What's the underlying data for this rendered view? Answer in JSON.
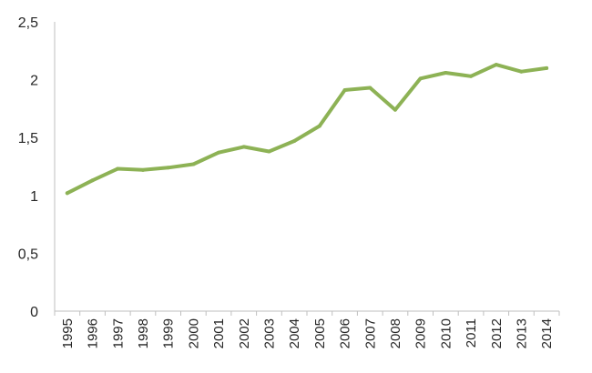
{
  "chart_data": {
    "type": "line",
    "title": "",
    "xlabel": "",
    "ylabel": "",
    "ylim": [
      0,
      2.5
    ],
    "yticks": [
      "0",
      "0,5",
      "1",
      "1,5",
      "2",
      "2,5"
    ],
    "ytick_values": [
      0,
      0.5,
      1,
      1.5,
      2,
      2.5
    ],
    "grid": false,
    "legend": "none",
    "line_color": "#8db255",
    "categories": [
      "1995",
      "1996",
      "1997",
      "1998",
      "1999",
      "2000",
      "2001",
      "2002",
      "2003",
      "2004",
      "2005",
      "2006",
      "2007",
      "2008",
      "2009",
      "2010",
      "2011",
      "2012",
      "2013",
      "2014"
    ],
    "series": [
      {
        "values": [
          1.02,
          1.13,
          1.23,
          1.22,
          1.24,
          1.27,
          1.37,
          1.42,
          1.38,
          1.47,
          1.6,
          1.91,
          1.93,
          1.74,
          2.01,
          2.06,
          2.03,
          2.13,
          2.07,
          2.1
        ]
      }
    ]
  }
}
